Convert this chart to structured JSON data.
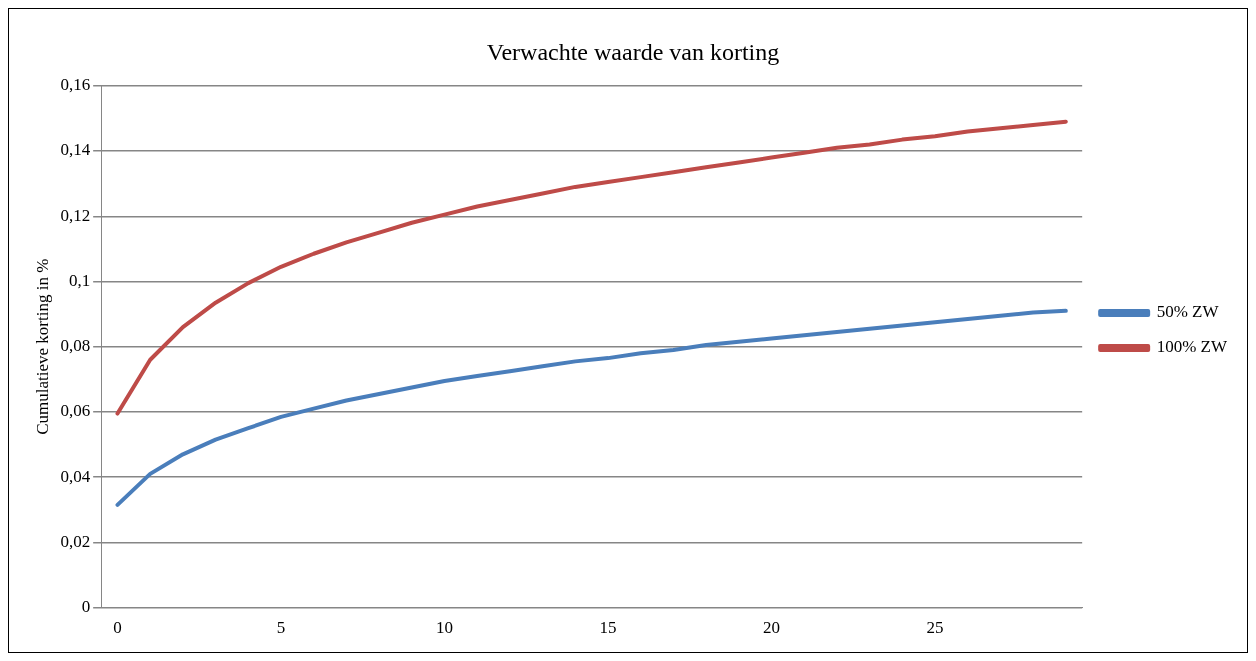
{
  "chart_data": {
    "type": "line",
    "title": "Verwachte waarde van korting",
    "ylabel": "Cumulatieve korting in %",
    "categories": [
      "0",
      null,
      null,
      null,
      null,
      "5",
      null,
      null,
      null,
      null,
      "10",
      null,
      null,
      null,
      null,
      "15",
      null,
      null,
      null,
      null,
      "20",
      null,
      null,
      null,
      null,
      "25",
      null,
      null,
      null,
      null
    ],
    "series": [
      {
        "name": "50% ZW",
        "color": "#4a7ebb",
        "values": [
          0.0315,
          0.041,
          0.047,
          0.0515,
          0.055,
          0.0585,
          0.061,
          0.0635,
          0.0655,
          0.0675,
          0.0695,
          0.071,
          0.0725,
          0.074,
          0.0755,
          0.0765,
          0.078,
          0.079,
          0.0805,
          0.0815,
          0.0825,
          0.0835,
          0.0845,
          0.0855,
          0.0865,
          0.0875,
          0.0885,
          0.0895,
          0.0905,
          0.091
        ]
      },
      {
        "name": "100% ZW",
        "color": "#be4b48",
        "values": [
          0.0595,
          0.076,
          0.086,
          0.0935,
          0.0995,
          0.1045,
          0.1085,
          0.112,
          0.115,
          0.118,
          0.1205,
          0.123,
          0.125,
          0.127,
          0.129,
          0.1305,
          0.132,
          0.1335,
          0.135,
          0.1365,
          0.138,
          0.1395,
          0.141,
          0.142,
          0.1435,
          0.1445,
          0.146,
          0.147,
          0.148,
          0.149
        ]
      }
    ],
    "ylim": [
      0,
      0.16
    ],
    "yticks": [
      0,
      {
        "value": 0.02,
        "label": "0,02"
      },
      {
        "value": 0.04,
        "label": "0,04"
      },
      {
        "value": 0.06,
        "label": "0,06"
      },
      {
        "value": 0.08,
        "label": "0,08"
      },
      {
        "value": 0.1,
        "label": "0,1"
      },
      {
        "value": 0.12,
        "label": "0,12"
      },
      {
        "value": 0.14,
        "label": "0,14"
      },
      {
        "value": 0.16,
        "label": "0,16"
      }
    ],
    "grid": "y",
    "legend": "right",
    "marker": "none",
    "line_style": "solid"
  }
}
